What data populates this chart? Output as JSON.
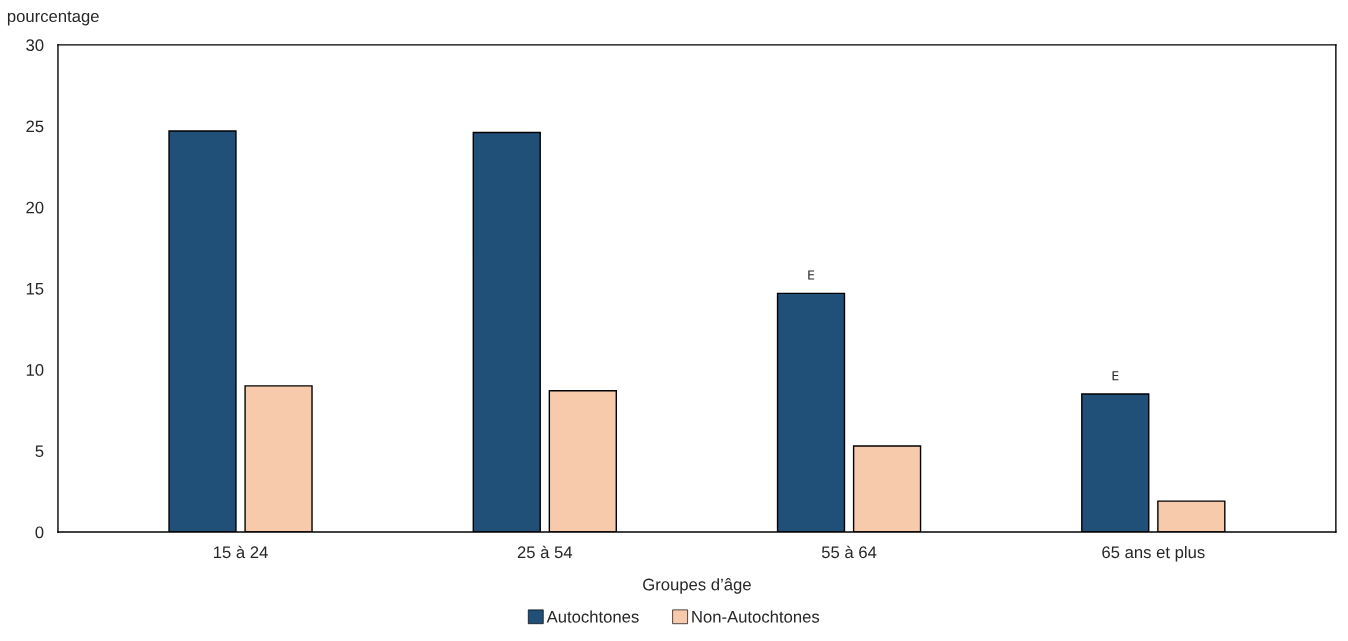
{
  "chart_data": {
    "type": "bar",
    "ylabel": "pourcentage",
    "xlabel": "Groupes d’âge",
    "categories": [
      "15 à 24",
      "25 à 54",
      "55 à 64",
      "65 ans et plus"
    ],
    "series": [
      {
        "name": "Autochtones",
        "color": "#204f78",
        "values": [
          24.7,
          24.6,
          14.7,
          8.5
        ],
        "value_labels": [
          null,
          null,
          "E",
          "E"
        ]
      },
      {
        "name": "Non-Autochtones",
        "color": "#f7caac",
        "values": [
          9.0,
          8.7,
          5.3,
          1.9
        ]
      }
    ],
    "ylim": [
      0,
      30
    ],
    "yticks": [
      0,
      5,
      10,
      15,
      20,
      25,
      30
    ],
    "grid": false,
    "legend": "bottom"
  }
}
